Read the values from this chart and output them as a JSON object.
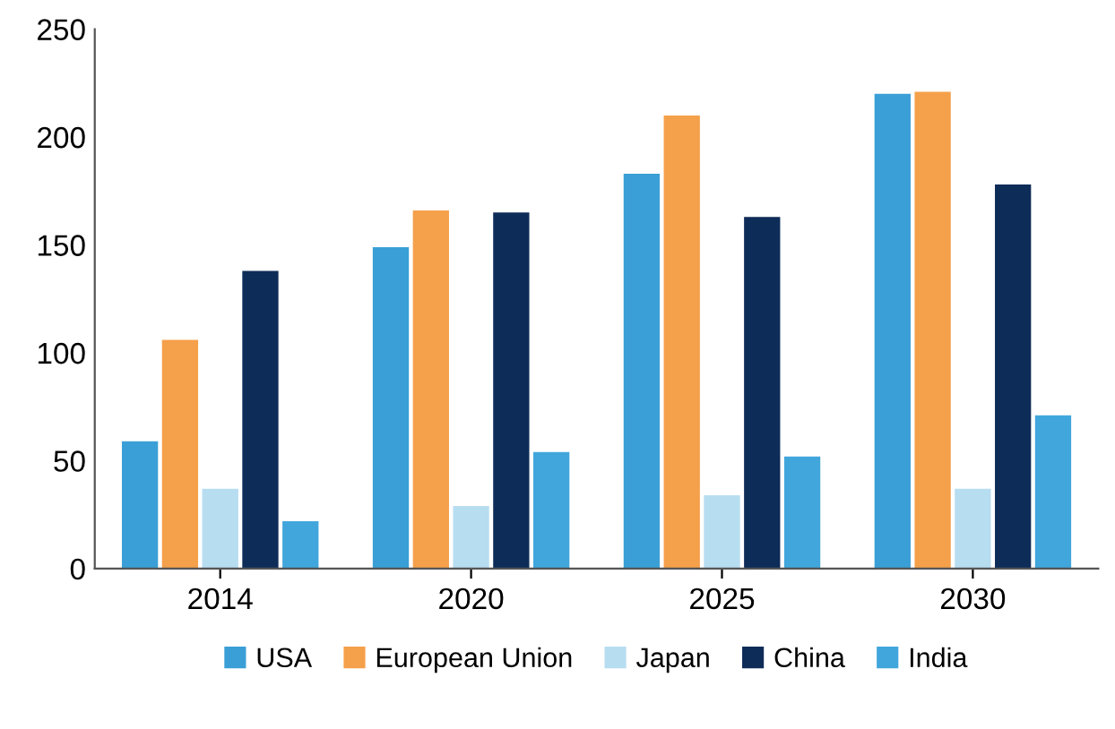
{
  "chart_data": {
    "type": "bar",
    "categories": [
      "2014",
      "2020",
      "2025",
      "2030"
    ],
    "series": [
      {
        "name": "USA",
        "color": "#3a9fd6",
        "values": [
          59,
          149,
          183,
          220
        ]
      },
      {
        "name": "European Union",
        "color": "#f5a04a",
        "values": [
          106,
          166,
          210,
          221
        ]
      },
      {
        "name": "Japan",
        "color": "#b7ddf1",
        "values": [
          37,
          29,
          34,
          37
        ]
      },
      {
        "name": "China",
        "color": "#0e2c58",
        "values": [
          138,
          165,
          163,
          178
        ]
      },
      {
        "name": "India",
        "color": "#41a6dc",
        "values": [
          22,
          54,
          52,
          71
        ]
      }
    ],
    "ylim": [
      0,
      250
    ],
    "yticks": [
      0,
      50,
      100,
      150,
      200,
      250
    ],
    "grid": false,
    "legend": "bottom"
  }
}
